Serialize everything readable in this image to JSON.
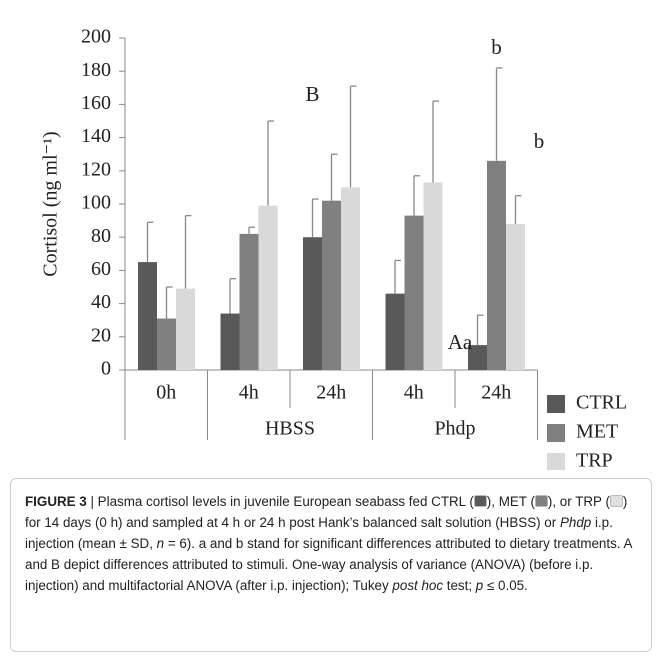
{
  "chart_data": {
    "type": "bar",
    "ylabel": "Cortisol (ng ml⁻¹)",
    "categories": [
      "0h",
      "4h",
      "24h",
      "4h",
      "24h"
    ],
    "category_groups": [
      null,
      "HBSS",
      "HBSS",
      "Phdp",
      "Phdp"
    ],
    "series": [
      {
        "name": "CTRL",
        "color": "#595959",
        "values": [
          65,
          34,
          80,
          46,
          15
        ],
        "errors": [
          24,
          21,
          23,
          20,
          18
        ]
      },
      {
        "name": "MET",
        "color": "#808080",
        "values": [
          31,
          82,
          102,
          93,
          126
        ],
        "errors": [
          19,
          4,
          28,
          24,
          56
        ]
      },
      {
        "name": "TRP",
        "color": "#d9d9d9",
        "values": [
          49,
          99,
          110,
          113,
          88
        ],
        "errors": [
          44,
          51,
          61,
          49,
          17
        ]
      }
    ],
    "annotations": [
      "B",
      "Aa",
      "b",
      "b"
    ],
    "ylim": [
      0,
      200
    ],
    "yticks": [
      0,
      20,
      40,
      60,
      80,
      100,
      120,
      140,
      160,
      180,
      200
    ]
  },
  "caption": {
    "runs": [
      "FIGURE 3",
      " | Plasma cortisol levels in juvenile European seabass fed CTRL (",
      "), MET (",
      "), or TRP (",
      ") for 14 days (0 h) and sampled at 4 h or 24 h post Hank’s balanced salt solution (HBSS) or ",
      "Phdp",
      " i.p. injection (mean ± SD, ",
      "n",
      " = 6). a and b stand for significant differences attributed to dietary treatments. A and B depict differences attributed to stimuli. One-way analysis of variance (ANOVA) (before i.p. injection) and multifactorial ANOVA (after i.p. injection); Tukey ",
      "post hoc",
      " test; ",
      "p",
      " ≤ 0.05."
    ]
  }
}
